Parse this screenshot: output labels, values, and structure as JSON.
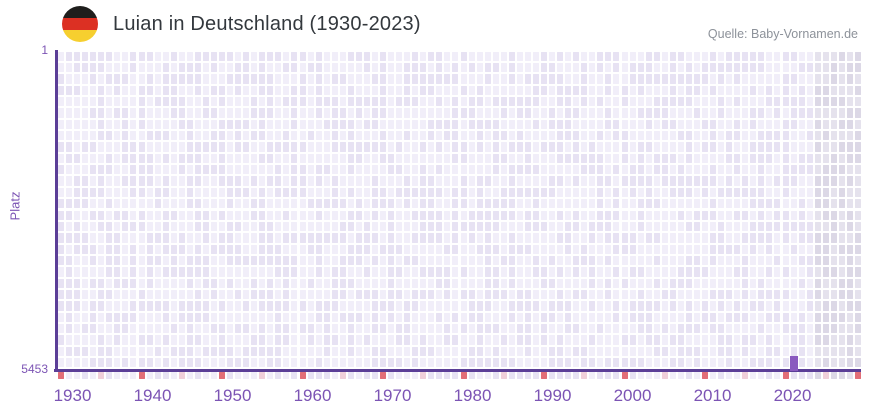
{
  "header": {
    "flag_icon": "germany-flag-icon",
    "title": "Luian in Deutschland (1930-2023)",
    "source": "Quelle: Baby-Vornamen.de"
  },
  "chart_data": {
    "type": "heatmap",
    "title": "Luian in Deutschland (1930-2023)",
    "name": "Luian",
    "region": "Deutschland",
    "year_range": [
      1930,
      2023
    ],
    "ylabel": "Platz",
    "y_axis_inverted": true,
    "ylim": [
      1,
      5453
    ],
    "y_tick_labels": [
      "1",
      "5453"
    ],
    "x_tick_labels": [
      "1930",
      "1940",
      "1950",
      "1960",
      "1970",
      "1980",
      "1990",
      "2000",
      "2010",
      "2020"
    ],
    "legend": "none",
    "series": [
      {
        "name": "Luian",
        "points": [
          {
            "year": 2021,
            "rank": 5230
          }
        ]
      }
    ],
    "grid": {
      "columns": 100,
      "rows": 28,
      "future_start_col": 94,
      "first_year": 1930
    },
    "x_axis_markers": {
      "red_cols": [
        0,
        10,
        20,
        30,
        40,
        50,
        60,
        70,
        80,
        90,
        99
      ],
      "pink_cols": [
        5,
        15,
        25,
        35,
        45,
        55,
        65,
        75,
        85,
        95
      ]
    },
    "colors": {
      "bar": "#8a5abf",
      "axis_line": "#5b3e97",
      "tick_label": "#7c54b4",
      "cell_light": "#f1eef9",
      "cell_dark": "#e7e2f3",
      "future_cell_light": "#e5e2ed",
      "future_cell_dark": "#dcd8e6",
      "marker_red": "#e26e77",
      "marker_pink": "#f0cfd9",
      "title_text": "#33383d",
      "source_text": "#8d929a",
      "flag_black": "#1f1e1c",
      "flag_red": "#dc3023",
      "flag_gold": "#f6cf2f"
    }
  }
}
